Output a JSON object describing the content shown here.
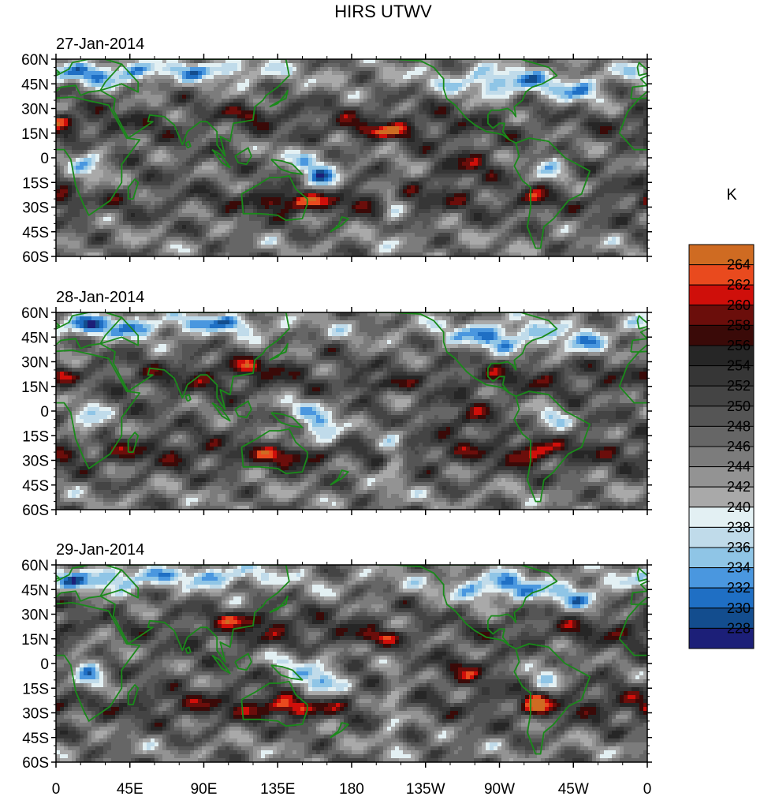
{
  "chart_data": {
    "type": "heatmap",
    "title": "HIRS UTWV",
    "units": "K",
    "panels": [
      {
        "date": "27-Jan-2014",
        "seed": 11
      },
      {
        "date": "28-Jan-2014",
        "seed": 37
      },
      {
        "date": "29-Jan-2014",
        "seed": 73
      }
    ],
    "lat_range": [
      -60,
      60
    ],
    "lon_range": [
      0,
      360
    ],
    "lat_ticks": [
      {
        "value": 60,
        "label": "60N"
      },
      {
        "value": 45,
        "label": "45N"
      },
      {
        "value": 30,
        "label": "30N"
      },
      {
        "value": 15,
        "label": "15N"
      },
      {
        "value": 0,
        "label": "0"
      },
      {
        "value": -15,
        "label": "15S"
      },
      {
        "value": -30,
        "label": "30S"
      },
      {
        "value": -45,
        "label": "45S"
      },
      {
        "value": -60,
        "label": "60S"
      }
    ],
    "lon_ticks": [
      {
        "value": 0,
        "label": "0"
      },
      {
        "value": 45,
        "label": "45E"
      },
      {
        "value": 90,
        "label": "90E"
      },
      {
        "value": 135,
        "label": "135E"
      },
      {
        "value": 180,
        "label": "180"
      },
      {
        "value": 225,
        "label": "135W"
      },
      {
        "value": 270,
        "label": "90W"
      },
      {
        "value": 315,
        "label": "45W"
      },
      {
        "value": 360,
        "label": "0"
      }
    ],
    "colorbar": {
      "levels": [
        228,
        230,
        232,
        234,
        236,
        238,
        240,
        242,
        244,
        246,
        248,
        250,
        252,
        254,
        256,
        258,
        260,
        262,
        264
      ],
      "colors": [
        "#1c1f78",
        "#134d8e",
        "#1f6fc4",
        "#4a97df",
        "#8fc5e6",
        "#c0dbea",
        "#e3f0f3",
        "#a9a9a9",
        "#939393",
        "#7c7c7c",
        "#666666",
        "#555555",
        "#444444",
        "#363636",
        "#262626",
        "#3a0a08",
        "#6b0e0b",
        "#cf0f0a",
        "#e94a1e",
        "#cf6b22"
      ]
    },
    "coastline_color": "#1a8a1a"
  }
}
